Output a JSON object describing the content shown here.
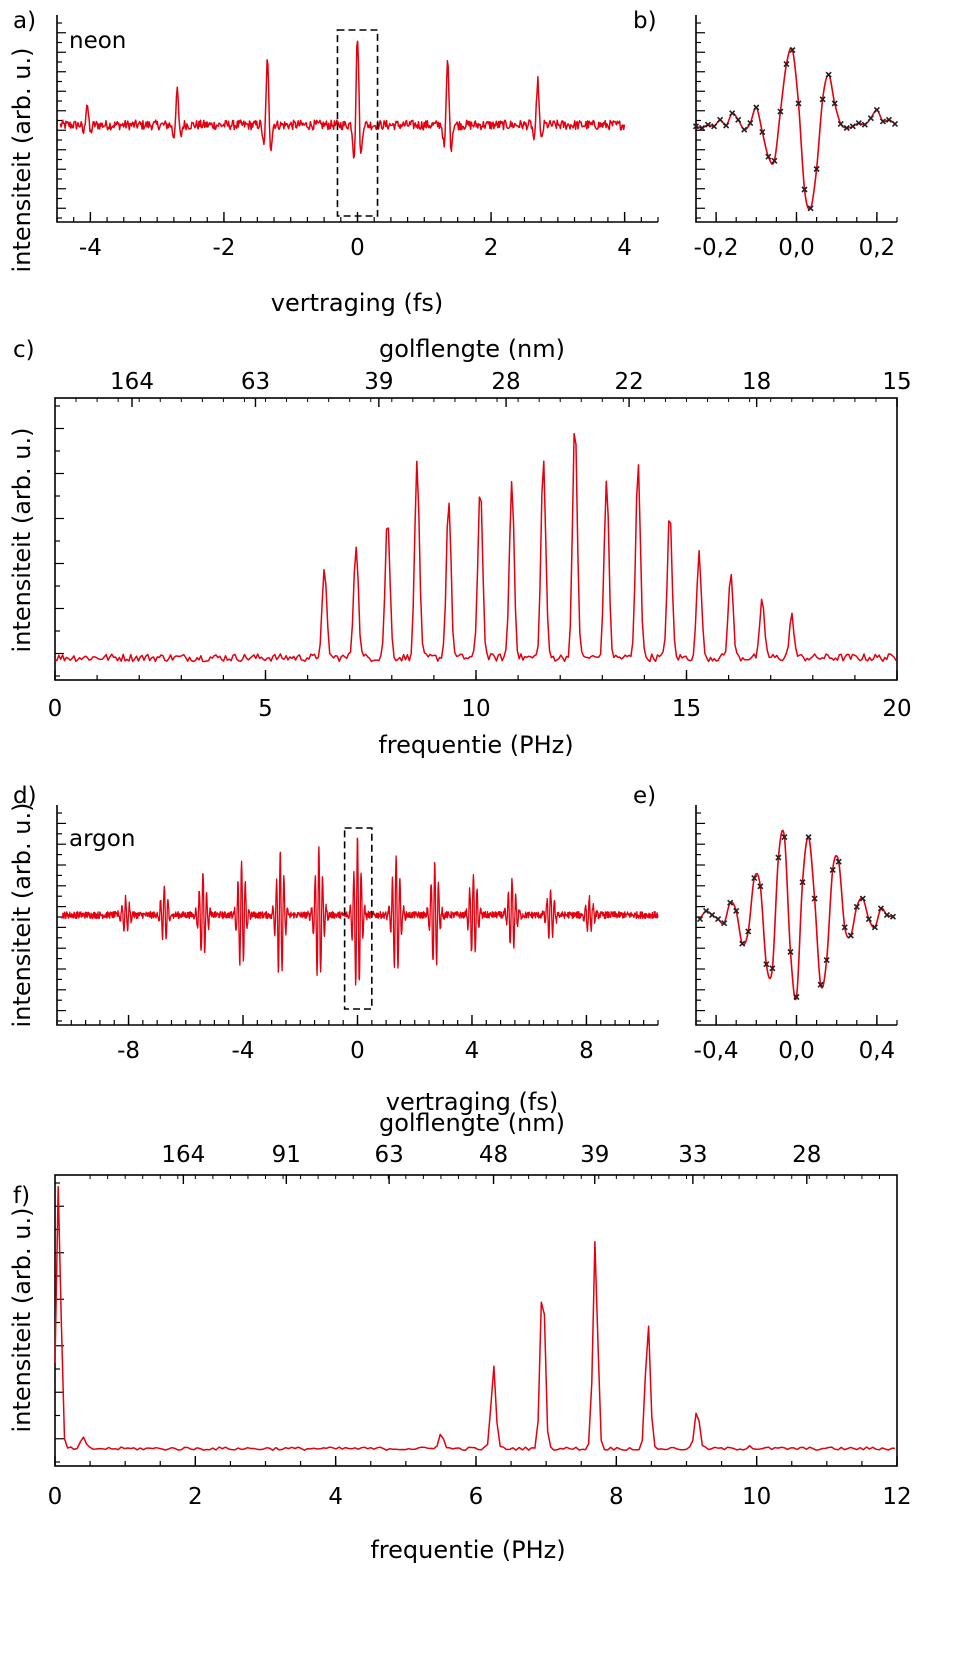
{
  "colors": {
    "trace": "#e3000f",
    "marker": "#222222",
    "box": "#000000"
  },
  "chart_data": [
    {
      "panel": "a)",
      "type": "line",
      "annotation": "neon",
      "xlabel": "vertraging (fs)",
      "ylabel": "intensiteit (arb. u.)",
      "xlim": [
        -4.5,
        4.5
      ],
      "ylim": [
        -1.15,
        1.05
      ],
      "xticks": [
        "-4",
        "-2",
        "0",
        "2",
        "4"
      ],
      "xtick_values": [
        -4,
        -2,
        0,
        2,
        4
      ],
      "highlight_box_x": [
        -0.3,
        0.3
      ],
      "noise_amplitude": 0.05,
      "bursts": [
        {
          "t": -4.05,
          "amp": 0.25
        },
        {
          "t": -2.7,
          "amp": 0.38
        },
        {
          "t": -1.35,
          "amp": 0.72
        },
        {
          "t": 0.0,
          "amp": 1.0
        },
        {
          "t": 1.35,
          "amp": 0.72
        },
        {
          "t": 2.7,
          "amp": 0.5
        }
      ],
      "carrier_period_fs": 0.13
    },
    {
      "panel": "b)",
      "type": "line",
      "xlim": [
        -0.25,
        0.25
      ],
      "ylim": [
        -1.15,
        1.05
      ],
      "xticks": [
        "-0,2",
        "0,0",
        "0,2"
      ],
      "xtick_values": [
        -0.2,
        0,
        0.2
      ],
      "x": [
        -0.25,
        -0.235,
        -0.22,
        -0.205,
        -0.19,
        -0.175,
        -0.16,
        -0.145,
        -0.13,
        -0.115,
        -0.1,
        -0.085,
        -0.07,
        -0.055,
        -0.04,
        -0.025,
        -0.01,
        0.005,
        0.02,
        0.035,
        0.05,
        0.065,
        0.08,
        0.095,
        0.11,
        0.125,
        0.14,
        0.155,
        0.17,
        0.185,
        0.2,
        0.215,
        0.23,
        0.245
      ],
      "y": [
        0.02,
        0.0,
        0.04,
        0.02,
        0.1,
        0.03,
        0.18,
        0.1,
        -0.02,
        0.06,
        0.25,
        -0.05,
        -0.35,
        -0.4,
        0.2,
        0.78,
        0.95,
        0.3,
        -0.75,
        -0.98,
        -0.5,
        0.35,
        0.65,
        0.3,
        0.05,
        0.0,
        0.02,
        0.06,
        0.04,
        0.12,
        0.22,
        0.08,
        0.1,
        0.05
      ]
    },
    {
      "panel": "c)",
      "type": "line",
      "xlabel": "frequentie (PHz)",
      "ylabel": "intensiteit (arb. u.)",
      "top_xlabel": "golflengte (nm)",
      "xlim": [
        0,
        20
      ],
      "xticks": [
        "0",
        "5",
        "10",
        "15",
        "20"
      ],
      "xtick_values": [
        0,
        5,
        10,
        15,
        20
      ],
      "top_ticks": [
        "164",
        "63",
        "39",
        "28",
        "22",
        "18",
        "15"
      ],
      "top_tick_values": [
        164,
        63,
        39,
        28,
        22,
        18,
        15
      ],
      "ylim": [
        0,
        1.0
      ],
      "baseline": 0.04,
      "peaks_x": [
        6.4,
        7.15,
        7.9,
        8.6,
        9.35,
        10.1,
        10.85,
        11.6,
        12.35,
        13.1,
        13.85,
        14.6,
        15.3,
        16.05,
        16.8,
        17.5
      ],
      "peaks_y": [
        0.37,
        0.48,
        0.58,
        0.8,
        0.65,
        0.71,
        0.72,
        0.81,
        0.95,
        0.73,
        0.8,
        0.6,
        0.44,
        0.37,
        0.26,
        0.2
      ]
    },
    {
      "panel": "d)",
      "type": "line",
      "annotation": "argon",
      "xlabel": "vertraging (fs)",
      "ylabel": "intensiteit (arb. u.)",
      "xlim": [
        -10.5,
        10.5
      ],
      "ylim": [
        -1.15,
        1.05
      ],
      "xticks": [
        "-8",
        "-4",
        "0",
        "4",
        "8"
      ],
      "xtick_values": [
        -8,
        -4,
        0,
        4,
        8
      ],
      "highlight_box_x": [
        -0.45,
        0.5
      ],
      "noise_amplitude": 0.04,
      "burst_spacing_fs": 1.35,
      "burst_centers": [
        -8.1,
        -6.75,
        -5.4,
        -4.05,
        -2.7,
        -1.35,
        0.0,
        1.35,
        2.7,
        4.05,
        5.4,
        6.75,
        8.1
      ],
      "burst_amps": [
        0.22,
        0.35,
        0.55,
        0.7,
        0.8,
        0.88,
        1.0,
        0.8,
        0.7,
        0.55,
        0.45,
        0.32,
        0.22
      ],
      "carrier_period_fs": 0.13
    },
    {
      "panel": "e)",
      "type": "line",
      "xlim": [
        -0.5,
        0.5
      ],
      "ylim": [
        -1.15,
        1.05
      ],
      "xticks": [
        "-0,4",
        "0,0",
        "0,4"
      ],
      "xtick_values": [
        -0.4,
        0,
        0.4
      ],
      "x": [
        -0.48,
        -0.45,
        -0.42,
        -0.39,
        -0.36,
        -0.33,
        -0.3,
        -0.27,
        -0.24,
        -0.21,
        -0.18,
        -0.15,
        -0.12,
        -0.09,
        -0.06,
        -0.03,
        0.0,
        0.03,
        0.06,
        0.09,
        0.12,
        0.15,
        0.18,
        0.21,
        0.24,
        0.27,
        0.3,
        0.33,
        0.36,
        0.39,
        0.42,
        0.45,
        0.48
      ],
      "y": [
        -0.05,
        0.05,
        0.0,
        -0.05,
        -0.1,
        0.15,
        0.05,
        -0.35,
        -0.2,
        0.45,
        0.35,
        -0.6,
        -0.65,
        0.7,
        0.95,
        -0.45,
        -1.0,
        0.4,
        0.95,
        0.2,
        -0.85,
        -0.55,
        0.55,
        0.65,
        -0.15,
        -0.25,
        0.1,
        0.2,
        -0.05,
        -0.15,
        0.08,
        0.0,
        -0.02
      ]
    },
    {
      "panel": "f)",
      "type": "line",
      "xlabel": "frequentie (PHz)",
      "ylabel": "intensiteit (arb. u.)",
      "top_xlabel": "golflengte (nm)",
      "xlim": [
        0,
        12
      ],
      "xticks": [
        "0",
        "2",
        "4",
        "6",
        "8",
        "10",
        "12"
      ],
      "xtick_values": [
        0,
        2,
        4,
        6,
        8,
        10,
        12
      ],
      "top_ticks": [
        "164",
        "91",
        "63",
        "48",
        "39",
        "33",
        "28"
      ],
      "top_tick_values": [
        164,
        91,
        63,
        48,
        39,
        33,
        28
      ],
      "ylim": [
        0,
        1.0
      ],
      "baseline": 0.02,
      "peaks_x": [
        0.05,
        0.4,
        5.5,
        6.25,
        6.95,
        7.7,
        8.45,
        9.15,
        9.9
      ],
      "peaks_y": [
        1.0,
        0.06,
        0.08,
        0.33,
        0.68,
        0.8,
        0.5,
        0.17,
        0.03
      ]
    }
  ]
}
